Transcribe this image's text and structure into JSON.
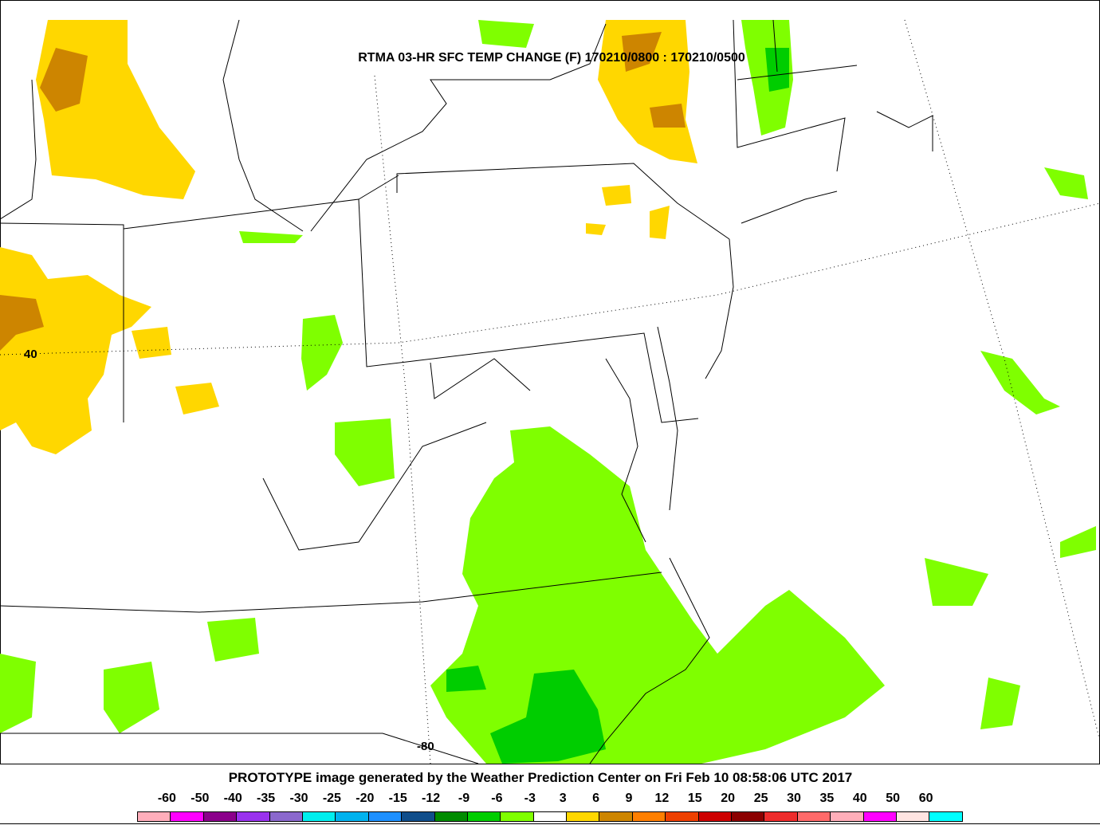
{
  "map": {
    "title": "RTMA 03-HR SFC TEMP CHANGE (F) 170210/0800 : 170210/0500",
    "lat_label": "40",
    "lon_label": "-80"
  },
  "footer": {
    "text": "PROTOTYPE image generated by the Weather Prediction Center on Fri Feb 10 08:58:06 UTC 2017"
  },
  "legend": {
    "labels": [
      "-60",
      "-50",
      "-40",
      "-35",
      "-30",
      "-25",
      "-20",
      "-15",
      "-12",
      "-9",
      "-6",
      "-3",
      "3",
      "6",
      "9",
      "12",
      "15",
      "20",
      "25",
      "30",
      "35",
      "40",
      "50",
      "60"
    ],
    "colors": [
      "#ffaebb",
      "#ff00ff",
      "#8b008b",
      "#9a32ee",
      "#8b68cd",
      "#00eeee",
      "#00b2ee",
      "#1e90ff",
      "#104e8b",
      "#008b00",
      "#00cd00",
      "#7fff00",
      "#ffffff",
      "#ffd700",
      "#cd8500",
      "#ff7f00",
      "#ee4000",
      "#cd0000",
      "#8b0000",
      "#ee2c2c",
      "#ff6a6a",
      "#ffaeb9",
      "#ff00ff",
      "#ffe4e1",
      "#00ffff"
    ]
  }
}
